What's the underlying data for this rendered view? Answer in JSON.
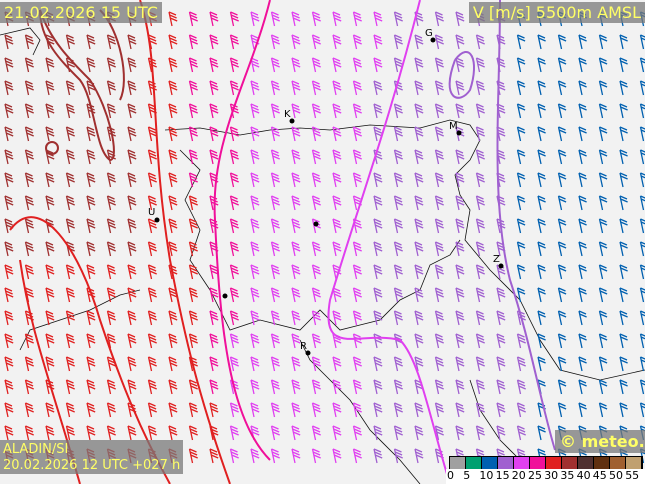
{
  "header": {
    "valid_time": "21.02.2026 15 UTC",
    "parameter": "V [m/s] 5500m AMSL"
  },
  "footer": {
    "model": "ALADIN/SI",
    "run": "20.02.2026 12 UTC +027 h",
    "copyright": "© meteo.si"
  },
  "legend": {
    "ticks": [
      "0",
      "5",
      "10",
      "15",
      "20",
      "25",
      "30",
      "35",
      "40",
      "45",
      "50",
      "55"
    ],
    "colors": [
      "#a0a0a0",
      "#00a070",
      "#0060b0",
      "#a060d0",
      "#e040f0",
      "#f0109a",
      "#e02020",
      "#a03030",
      "#503030",
      "#603010",
      "#a06030",
      "#c0a070"
    ]
  },
  "cities": [
    {
      "label": "G"
    },
    {
      "label": "K"
    },
    {
      "label": "M"
    },
    {
      "label": "U"
    },
    {
      "label": "Z"
    },
    {
      "label": "R"
    },
    {
      "label": ""
    },
    {
      "label": ""
    }
  ]
}
